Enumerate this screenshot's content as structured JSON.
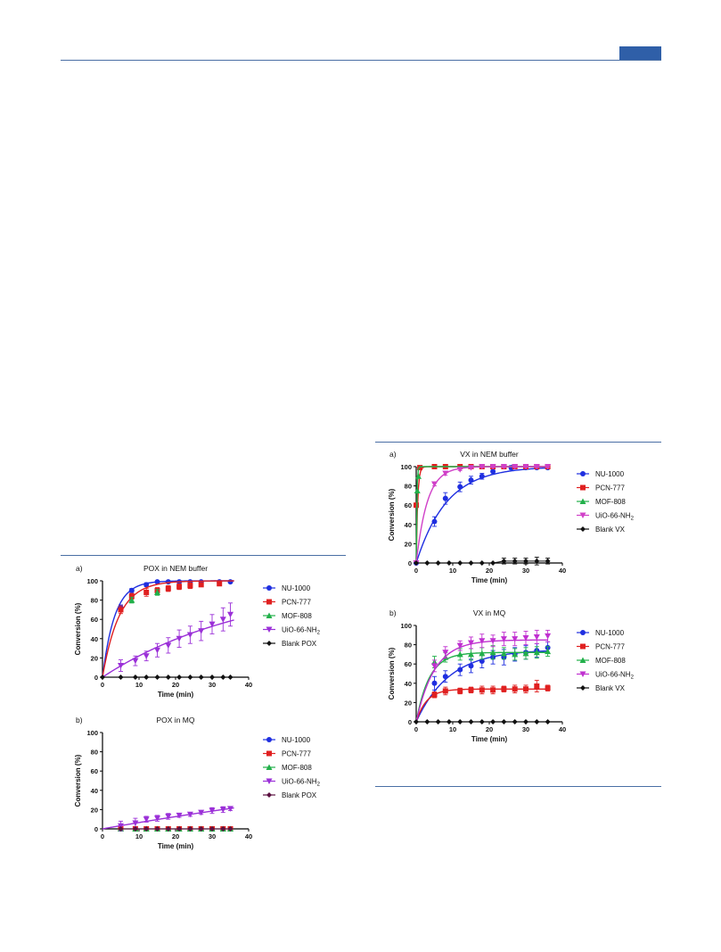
{
  "page": {
    "accent_color": "#2f5fa8"
  },
  "chart_data": [
    {
      "panel": "a)",
      "title": "POX in NEM buffer",
      "type": "scatter",
      "xlabel": "Time (min)",
      "ylabel": "Conversion (%)",
      "xlim": [
        0,
        40
      ],
      "ylim": [
        0,
        100
      ],
      "xticks": [
        "0",
        "10",
        "20",
        "30",
        "40"
      ],
      "yticks": [
        "0",
        "20",
        "40",
        "60",
        "80",
        "100"
      ],
      "series": [
        {
          "name": "NU-1000",
          "color": "#1f2fe0",
          "marker": "circle",
          "x": [
            5,
            8,
            12,
            15,
            18,
            21,
            24,
            27,
            32,
            35
          ],
          "y": [
            72,
            90,
            96,
            99,
            99,
            99,
            99,
            99,
            99,
            99
          ],
          "err": [
            3,
            2,
            2,
            1,
            1,
            1,
            1,
            1,
            1,
            1
          ],
          "fit": {
            "a": 100,
            "k": 0.3
          }
        },
        {
          "name": "PCN-777",
          "color": "#e02020",
          "marker": "square",
          "x": [
            5,
            8,
            12,
            15,
            18,
            21,
            24,
            27,
            32
          ],
          "y": [
            70,
            84,
            88,
            90,
            92,
            94,
            95,
            96,
            97
          ],
          "err": [
            4,
            3,
            4,
            3,
            3,
            3,
            3,
            2,
            2
          ],
          "fit": {
            "a": 100,
            "k": 0.22
          }
        },
        {
          "name": "MOF-808",
          "color": "#22b04a",
          "marker": "triangle-up",
          "x": [
            8,
            15
          ],
          "y": [
            80,
            88
          ],
          "err": [
            3,
            3
          ],
          "fit": null
        },
        {
          "name": "UiO-66-NH₂",
          "color": "#9b30d8",
          "marker": "triangle-down",
          "x": [
            5,
            9,
            12,
            15,
            18,
            21,
            24,
            27,
            30,
            33,
            35
          ],
          "y": [
            12,
            17,
            22,
            28,
            33,
            40,
            44,
            48,
            55,
            60,
            65
          ],
          "err": [
            6,
            5,
            5,
            7,
            8,
            9,
            9,
            10,
            10,
            12,
            12
          ],
          "fit": {
            "a": 100,
            "k": 0.025
          }
        },
        {
          "name": "Blank POX",
          "color": "#111111",
          "marker": "diamond",
          "x": [
            0,
            5,
            9,
            12,
            15,
            18,
            21,
            24,
            27,
            30,
            33,
            35
          ],
          "y": [
            0,
            0,
            0,
            0,
            0,
            0,
            0,
            0,
            0,
            0,
            0,
            0
          ],
          "err": [
            0,
            0,
            0,
            0,
            0,
            0,
            0,
            0,
            0,
            0,
            0,
            0
          ],
          "fit": null
        }
      ]
    },
    {
      "panel": "b)",
      "title": "POX in MQ",
      "type": "scatter",
      "xlabel": "Time (min)",
      "ylabel": "Conversion (%)",
      "xlim": [
        0,
        40
      ],
      "ylim": [
        0,
        100
      ],
      "xticks": [
        "0",
        "10",
        "20",
        "30",
        "40"
      ],
      "yticks": [
        "0",
        "20",
        "40",
        "60",
        "80",
        "100"
      ],
      "series": [
        {
          "name": "NU-1000",
          "color": "#1f2fe0",
          "marker": "circle",
          "x": [
            5,
            9,
            12,
            15,
            18,
            21,
            24,
            27,
            30,
            33,
            35
          ],
          "y": [
            0,
            0,
            0,
            0,
            0,
            0,
            0,
            0,
            0,
            0,
            0
          ],
          "err": [
            1,
            1,
            1,
            1,
            1,
            1,
            1,
            1,
            1,
            1,
            1
          ],
          "fit": null
        },
        {
          "name": "PCN-777",
          "color": "#e02020",
          "marker": "square",
          "x": [
            5,
            9,
            12,
            15,
            18,
            21,
            24,
            27,
            30,
            33,
            35
          ],
          "y": [
            0,
            0,
            0,
            0,
            0,
            0,
            0,
            0,
            0,
            0,
            0
          ],
          "err": [
            0,
            0,
            0,
            0,
            0,
            0,
            0,
            0,
            0,
            0,
            0
          ],
          "fit": null
        },
        {
          "name": "MOF-808",
          "color": "#22b04a",
          "marker": "triangle-up",
          "x": [
            5,
            9,
            12,
            15,
            18,
            21,
            24,
            27,
            30,
            33,
            35
          ],
          "y": [
            0,
            0,
            0,
            0,
            0,
            0,
            0,
            0,
            0,
            0,
            0
          ],
          "err": [
            0,
            0,
            0,
            0,
            0,
            0,
            0,
            0,
            0,
            0,
            0
          ],
          "fit": null
        },
        {
          "name": "UiO-66-NH₂",
          "color": "#9b30d8",
          "marker": "triangle-down",
          "x": [
            5,
            9,
            12,
            15,
            18,
            21,
            24,
            27,
            30,
            33,
            35
          ],
          "y": [
            3,
            6,
            10,
            11,
            13,
            14,
            15,
            17,
            19,
            20,
            21
          ],
          "err": [
            5,
            5,
            3,
            3,
            3,
            2,
            2,
            2,
            3,
            3,
            2
          ],
          "fit": {
            "a": 100,
            "k": 0.0068
          }
        },
        {
          "name": "Blank POX",
          "color": "#5a1040",
          "marker": "diamond",
          "x": [
            5,
            9,
            12,
            15,
            18,
            21,
            24,
            27,
            30,
            33,
            35
          ],
          "y": [
            0,
            0,
            0,
            0,
            0,
            0,
            0,
            0,
            0,
            0,
            0
          ],
          "err": [
            0,
            0,
            0,
            0,
            0,
            0,
            0,
            0,
            0,
            0,
            0
          ],
          "fit": null
        }
      ]
    },
    {
      "panel": "a)",
      "title": "VX in NEM buffer",
      "type": "scatter",
      "xlabel": "Time (min)",
      "ylabel": "Conversion (%)",
      "xlim": [
        0,
        40
      ],
      "ylim": [
        0,
        100
      ],
      "xticks": [
        "0",
        "10",
        "20",
        "30",
        "40"
      ],
      "yticks": [
        "0",
        "20",
        "40",
        "60",
        "80",
        "100"
      ],
      "series": [
        {
          "name": "NU-1000",
          "color": "#1f2fe0",
          "marker": "circle",
          "x": [
            0,
            5,
            8,
            12,
            15,
            18,
            21,
            26,
            30,
            33,
            36
          ],
          "y": [
            0,
            43,
            67,
            79,
            86,
            90,
            95,
            99,
            99,
            99,
            99
          ],
          "err": [
            0,
            5,
            6,
            5,
            4,
            3,
            3,
            2,
            1,
            1,
            1
          ],
          "fit": {
            "a": 100,
            "k": 0.12
          }
        },
        {
          "name": "PCN-777",
          "color": "#e02020",
          "marker": "square",
          "x": [
            0,
            1,
            5,
            8,
            12,
            15,
            18,
            21,
            24,
            27,
            30,
            33,
            36
          ],
          "y": [
            60,
            99,
            100,
            100,
            100,
            100,
            100,
            100,
            100,
            100,
            100,
            100,
            100
          ],
          "err": [
            0,
            0,
            0,
            0,
            0,
            0,
            0,
            0,
            0,
            0,
            0,
            0,
            0
          ],
          "fit": {
            "a": 100,
            "k": 2.5
          }
        },
        {
          "name": "MOF-808",
          "color": "#22b04a",
          "marker": "triangle-up",
          "x": [
            0.3,
            0.6
          ],
          "y": [
            75,
            90
          ],
          "err": [
            0,
            0
          ],
          "fit": {
            "a": 100,
            "k": 6
          }
        },
        {
          "name": "UiO-66-NH₂",
          "color": "#d040c8",
          "marker": "triangle-down",
          "x": [
            0,
            5,
            8,
            12,
            15,
            18,
            21,
            24,
            27,
            30,
            33,
            36
          ],
          "y": [
            0,
            82,
            93,
            97,
            99,
            100,
            100,
            100,
            100,
            100,
            100,
            100
          ],
          "err": [
            0,
            2,
            2,
            1,
            1,
            1,
            1,
            1,
            1,
            1,
            1,
            1
          ],
          "fit": {
            "a": 100,
            "k": 0.33
          }
        },
        {
          "name": "Blank VX",
          "color": "#111111",
          "marker": "diamond",
          "x": [
            0,
            3,
            6,
            9,
            12,
            15,
            18,
            21,
            24,
            27,
            30,
            33,
            36
          ],
          "y": [
            0,
            0,
            0,
            0,
            0,
            0,
            0,
            0,
            2,
            2,
            2,
            2,
            2
          ],
          "err": [
            0,
            0,
            0,
            0,
            0,
            0,
            0,
            0,
            3,
            3,
            3,
            4,
            3
          ],
          "fit": null
        }
      ]
    },
    {
      "panel": "b)",
      "title": "VX in MQ",
      "type": "scatter",
      "xlabel": "Time (min)",
      "ylabel": "Conversion (%)",
      "xlim": [
        0,
        40
      ],
      "ylim": [
        0,
        100
      ],
      "xticks": [
        "0",
        "10",
        "20",
        "30",
        "40"
      ],
      "yticks": [
        "0",
        "20",
        "40",
        "60",
        "80",
        "100"
      ],
      "series": [
        {
          "name": "NU-1000",
          "color": "#1f2fe0",
          "marker": "circle",
          "x": [
            5,
            8,
            12,
            15,
            18,
            21,
            24,
            27,
            30,
            33,
            36
          ],
          "y": [
            40,
            47,
            54,
            58,
            63,
            67,
            67,
            70,
            72,
            74,
            77
          ],
          "err": [
            7,
            6,
            6,
            7,
            7,
            7,
            8,
            7,
            7,
            7,
            6
          ],
          "fit": {
            "a": 75,
            "k": 0.11
          }
        },
        {
          "name": "PCN-777",
          "color": "#e02020",
          "marker": "square",
          "x": [
            5,
            8,
            12,
            15,
            18,
            21,
            24,
            27,
            30,
            33,
            36
          ],
          "y": [
            28,
            32,
            32,
            33,
            33,
            33,
            34,
            34,
            34,
            37,
            35
          ],
          "err": [
            3,
            4,
            3,
            3,
            4,
            4,
            3,
            4,
            4,
            6,
            3
          ],
          "fit": {
            "a": 34,
            "k": 0.35
          }
        },
        {
          "name": "MOF-808",
          "color": "#22b04a",
          "marker": "triangle-up",
          "x": [
            5,
            8,
            12,
            15,
            18,
            21,
            24,
            27,
            30,
            33,
            36
          ],
          "y": [
            62,
            67,
            70,
            70,
            71,
            72,
            71,
            70,
            71,
            72,
            73
          ],
          "err": [
            6,
            5,
            6,
            6,
            6,
            7,
            6,
            6,
            6,
            6,
            5
          ],
          "fit": {
            "a": 72,
            "k": 0.28
          }
        },
        {
          "name": "UiO-66-NH₂",
          "color": "#c030d0",
          "marker": "triangle-down",
          "x": [
            5,
            8,
            12,
            15,
            18,
            21,
            24,
            27,
            30,
            33,
            36
          ],
          "y": [
            58,
            72,
            79,
            82,
            84,
            84,
            86,
            86,
            87,
            88,
            89
          ],
          "err": [
            6,
            6,
            5,
            6,
            7,
            6,
            7,
            7,
            7,
            7,
            6
          ],
          "fit": {
            "a": 85,
            "k": 0.2
          }
        },
        {
          "name": "Blank VX",
          "color": "#111111",
          "marker": "diamond",
          "x": [
            0,
            3,
            6,
            9,
            12,
            15,
            18,
            21,
            24,
            27,
            30,
            33,
            36
          ],
          "y": [
            0,
            0,
            0,
            0,
            0,
            0,
            0,
            0,
            0,
            0,
            0,
            0,
            0
          ],
          "err": [
            0,
            0,
            0,
            0,
            0,
            0,
            0,
            0,
            0,
            0,
            0,
            0,
            0
          ],
          "fit": null
        }
      ]
    }
  ]
}
